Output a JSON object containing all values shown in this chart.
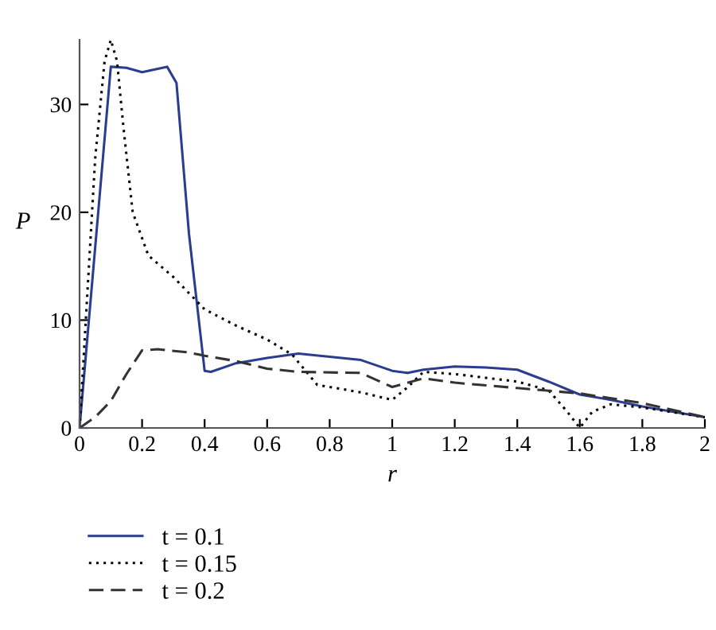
{
  "chart_data": {
    "type": "line",
    "xlabel": "r",
    "ylabel": "P",
    "xlim": [
      0,
      2
    ],
    "ylim": [
      0,
      36
    ],
    "xticks": [
      0,
      0.2,
      0.4,
      0.6,
      0.8,
      1,
      1.2,
      1.4,
      1.6,
      1.8,
      2
    ],
    "yticks": [
      0,
      10,
      20,
      30
    ],
    "grid": false,
    "legend": "bottom left",
    "marker": "none",
    "series": [
      {
        "name": "t = 0.1",
        "color": "#2a3d8f",
        "line_style": "solid",
        "x": [
          0,
          0.1,
          0.15,
          0.2,
          0.28,
          0.31,
          0.35,
          0.4,
          0.42,
          0.5,
          0.6,
          0.7,
          0.8,
          0.9,
          1.0,
          1.05,
          1.1,
          1.2,
          1.3,
          1.4,
          1.5,
          1.6,
          1.7,
          1.8,
          1.9,
          2
        ],
        "values": [
          0,
          33.5,
          33.4,
          33,
          33.5,
          32,
          18,
          5.3,
          5.2,
          6,
          6.5,
          6.9,
          6.6,
          6.3,
          5.3,
          5.1,
          5.4,
          5.7,
          5.6,
          5.4,
          4.3,
          3.1,
          2.6,
          2,
          1.5,
          1
        ]
      },
      {
        "name": "t = 0.15",
        "color": "#000000",
        "line_style": "dotted",
        "x": [
          0,
          0.02,
          0.05,
          0.08,
          0.1,
          0.12,
          0.14,
          0.17,
          0.22,
          0.3,
          0.4,
          0.5,
          0.6,
          0.68,
          0.76,
          0.9,
          1.0,
          1.05,
          1.1,
          1.2,
          1.4,
          1.5,
          1.56,
          1.6,
          1.64,
          1.7,
          1.8,
          2
        ],
        "values": [
          0,
          10,
          25,
          34,
          36,
          34,
          28,
          20,
          16,
          14,
          11,
          9.5,
          8.2,
          6.8,
          4,
          3.3,
          2.6,
          3.8,
          5.2,
          5,
          4.3,
          3.5,
          1.5,
          0,
          1.5,
          2.2,
          1.9,
          1
        ]
      },
      {
        "name": "t = 0.2",
        "color": "#333333",
        "line_style": "dashed",
        "x": [
          0,
          0.05,
          0.1,
          0.15,
          0.2,
          0.25,
          0.35,
          0.4,
          0.5,
          0.6,
          0.7,
          0.9,
          1.0,
          1.1,
          1.2,
          1.4,
          1.6,
          1.8,
          2
        ],
        "values": [
          0,
          1,
          2.5,
          5,
          7.2,
          7.3,
          7,
          6.7,
          6.2,
          5.5,
          5.2,
          5.1,
          3.8,
          4.6,
          4.2,
          3.7,
          3.2,
          2.3,
          1
        ]
      }
    ]
  }
}
